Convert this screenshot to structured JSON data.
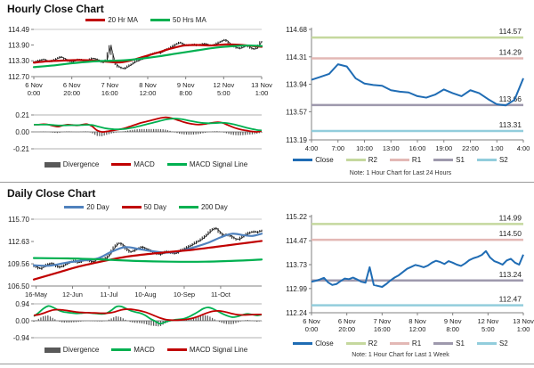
{
  "panels": {
    "hourly": {
      "title": "Hourly Close Chart"
    },
    "daily": {
      "title": "Daily Close Chart"
    },
    "hourly_pivot": {
      "note": "Note: 1 Hour Chart for Last 24 Hours"
    },
    "weekly_pivot": {
      "note": "Note: 1 Hour Chart for Last 1 Week"
    }
  },
  "colors": {
    "close_blue": "#1f6cb4",
    "ma_red": "#c00000",
    "ma_green": "#00b050",
    "ma20_blue": "#4f81bd",
    "r2_olive": "#c5d89e",
    "r1_pink": "#e3b8b5",
    "s1_purple": "#9e99ad",
    "s2_cyan": "#92cddc",
    "divergence_gray": "#595959",
    "candle_black": "#1a1a1a"
  },
  "chart_data": [
    {
      "id": "hourly-price",
      "type": "candlestick",
      "ylim": [
        112.7,
        114.49
      ],
      "yticks": [
        "114.49",
        "113.90",
        "113.30",
        "112.70"
      ],
      "xticks": [
        {
          "l1": "6 Nov",
          "l2": "0:00",
          "f": 0
        },
        {
          "l1": "6 Nov",
          "l2": "20:00",
          "f": 0.1667
        },
        {
          "l1": "7 Nov",
          "l2": "16:00",
          "f": 0.3333
        },
        {
          "l1": "8 Nov",
          "l2": "12:00",
          "f": 0.5
        },
        {
          "l1": "9 Nov",
          "l2": "8:00",
          "f": 0.6667
        },
        {
          "l1": "12 Nov",
          "l2": "5:00",
          "f": 0.8333
        },
        {
          "l1": "13 Nov",
          "l2": "1:00",
          "f": 1
        }
      ],
      "close": [
        113.25,
        113.28,
        113.32,
        113.36,
        113.3,
        113.27,
        113.33,
        113.4,
        113.45,
        113.38,
        113.3,
        113.26,
        113.3,
        113.36,
        113.33,
        113.28,
        113.34,
        113.4,
        113.36,
        113.3,
        113.22,
        113.33,
        113.9,
        113.32,
        113.1,
        113.04,
        113.0,
        113.08,
        113.16,
        113.25,
        113.31,
        113.36,
        113.43,
        113.5,
        113.56,
        113.61,
        113.58,
        113.65,
        113.72,
        113.79,
        113.86,
        113.95,
        114.0,
        113.92,
        113.88,
        113.9,
        113.93,
        113.88,
        113.92,
        113.96,
        113.9,
        113.88,
        113.93,
        113.99,
        114.06,
        114.1,
        113.96,
        113.86,
        113.8,
        113.76,
        113.83,
        113.88,
        113.8,
        113.73,
        113.8,
        114.02
      ],
      "overlays": [
        {
          "name": "20 Hr MA",
          "color": "#c00000",
          "points": [
            [
              0,
              113.23
            ],
            [
              0.06,
              113.28
            ],
            [
              0.13,
              113.31
            ],
            [
              0.2,
              113.33
            ],
            [
              0.28,
              113.3
            ],
            [
              0.33,
              113.26
            ],
            [
              0.38,
              113.24
            ],
            [
              0.42,
              113.3
            ],
            [
              0.48,
              113.45
            ],
            [
              0.54,
              113.6
            ],
            [
              0.6,
              113.76
            ],
            [
              0.66,
              113.88
            ],
            [
              0.72,
              113.9
            ],
            [
              0.78,
              113.88
            ],
            [
              0.84,
              113.92
            ],
            [
              0.9,
              113.91
            ],
            [
              0.95,
              113.87
            ],
            [
              1,
              113.83
            ]
          ]
        },
        {
          "name": "50 Hrs MA",
          "color": "#00b050",
          "points": [
            [
              0,
              113.06
            ],
            [
              0.08,
              113.12
            ],
            [
              0.16,
              113.2
            ],
            [
              0.25,
              113.27
            ],
            [
              0.33,
              113.3
            ],
            [
              0.4,
              113.32
            ],
            [
              0.47,
              113.38
            ],
            [
              0.55,
              113.47
            ],
            [
              0.63,
              113.58
            ],
            [
              0.72,
              113.7
            ],
            [
              0.8,
              113.8
            ],
            [
              0.88,
              113.86
            ],
            [
              0.94,
              113.88
            ],
            [
              1,
              113.86
            ]
          ]
        }
      ],
      "legend": [
        {
          "label": "20 Hr MA",
          "color": "#c00000",
          "swatch": "line"
        },
        {
          "label": "50 Hrs MA",
          "color": "#00b050",
          "swatch": "line"
        }
      ]
    },
    {
      "id": "hourly-macd",
      "type": "macd",
      "ylim": [
        -0.21,
        0.21
      ],
      "yticks": [
        "0.21",
        "0.00",
        "-0.21"
      ],
      "macd_color": "#c00000",
      "signal_color": "#00b050",
      "macd": [
        0.09,
        0.09,
        0.095,
        0.09,
        0.075,
        0.065,
        0.08,
        0.09,
        0.085,
        0.08,
        0.09,
        0.095,
        0.07,
        0.02,
        0.0,
        0.005,
        0.015,
        0.025,
        0.035,
        0.05,
        0.07,
        0.09,
        0.11,
        0.125,
        0.14,
        0.155,
        0.17,
        0.18,
        0.175,
        0.16,
        0.14,
        0.12,
        0.105,
        0.095,
        0.09,
        0.095,
        0.105,
        0.115,
        0.12,
        0.11,
        0.085,
        0.06,
        0.04,
        0.025,
        0.015,
        0.005,
        0.0,
        0.01
      ],
      "signal": [
        0.09,
        0.09,
        0.09,
        0.09,
        0.085,
        0.08,
        0.08,
        0.082,
        0.083,
        0.083,
        0.085,
        0.087,
        0.085,
        0.07,
        0.055,
        0.042,
        0.035,
        0.032,
        0.033,
        0.038,
        0.048,
        0.06,
        0.075,
        0.09,
        0.105,
        0.12,
        0.135,
        0.15,
        0.16,
        0.165,
        0.162,
        0.152,
        0.14,
        0.128,
        0.117,
        0.11,
        0.107,
        0.108,
        0.111,
        0.113,
        0.108,
        0.097,
        0.082,
        0.066,
        0.05,
        0.036,
        0.024,
        0.018
      ],
      "legend": [
        {
          "label": "Divergence",
          "color": "#595959",
          "swatch": "bar"
        },
        {
          "label": "MACD",
          "color": "#c00000",
          "swatch": "line"
        },
        {
          "label": "MACD Signal Line",
          "color": "#00b050",
          "swatch": "line"
        }
      ]
    },
    {
      "id": "daily-price",
      "type": "candlestick",
      "ylim": [
        106.5,
        115.7
      ],
      "yticks": [
        "115.70",
        "112.63",
        "109.56",
        "106.50"
      ],
      "xticks": [
        {
          "l1": "16-May",
          "f": 0.01
        },
        {
          "l1": "12-Jun",
          "f": 0.17
        },
        {
          "l1": "11-Jul",
          "f": 0.33
        },
        {
          "l1": "10-Aug",
          "f": 0.49
        },
        {
          "l1": "10-Sep",
          "f": 0.66
        },
        {
          "l1": "11-Oct",
          "f": 0.82
        }
      ],
      "close": [
        109.4,
        109.1,
        108.85,
        109.2,
        109.5,
        109.65,
        109.35,
        109.05,
        109.25,
        109.55,
        109.8,
        110.0,
        109.7,
        109.9,
        110.1,
        110.0,
        109.8,
        110.15,
        110.3,
        110.2,
        110.5,
        111.2,
        112.0,
        112.45,
        112.2,
        111.6,
        111.2,
        111.35,
        111.6,
        111.9,
        111.7,
        111.45,
        111.25,
        111.0,
        110.85,
        111.05,
        111.3,
        111.1,
        110.95,
        111.2,
        111.5,
        111.75,
        112.0,
        112.3,
        112.6,
        112.9,
        113.3,
        113.8,
        114.3,
        114.5,
        113.9,
        113.45,
        113.6,
        113.35,
        113.05,
        112.85,
        113.25,
        113.6,
        113.85,
        114.0,
        113.9,
        114.1
      ],
      "overlays": [
        {
          "name": "20 Day",
          "color": "#4f81bd",
          "points": [
            [
              0,
              109.35
            ],
            [
              0.07,
              109.3
            ],
            [
              0.14,
              109.7
            ],
            [
              0.21,
              110.0
            ],
            [
              0.28,
              110.3
            ],
            [
              0.34,
              111.2
            ],
            [
              0.4,
              111.85
            ],
            [
              0.46,
              111.6
            ],
            [
              0.52,
              111.3
            ],
            [
              0.58,
              111.1
            ],
            [
              0.64,
              111.3
            ],
            [
              0.7,
              111.8
            ],
            [
              0.76,
              112.4
            ],
            [
              0.82,
              113.2
            ],
            [
              0.87,
              113.7
            ],
            [
              0.92,
              113.5
            ],
            [
              0.96,
              113.4
            ],
            [
              1,
              113.7
            ]
          ]
        },
        {
          "name": "50 Day",
          "color": "#c00000",
          "points": [
            [
              0,
              107.4
            ],
            [
              0.1,
              108.3
            ],
            [
              0.2,
              109.2
            ],
            [
              0.3,
              109.9
            ],
            [
              0.4,
              110.5
            ],
            [
              0.5,
              110.9
            ],
            [
              0.6,
              111.2
            ],
            [
              0.7,
              111.5
            ],
            [
              0.8,
              111.9
            ],
            [
              0.9,
              112.3
            ],
            [
              1,
              112.7
            ]
          ]
        },
        {
          "name": "200 Day",
          "color": "#00b050",
          "points": [
            [
              0,
              110.35
            ],
            [
              0.15,
              110.3
            ],
            [
              0.3,
              110.15
            ],
            [
              0.45,
              109.95
            ],
            [
              0.6,
              109.85
            ],
            [
              0.75,
              109.85
            ],
            [
              0.9,
              110.0
            ],
            [
              1,
              110.15
            ]
          ]
        }
      ],
      "legend": [
        {
          "label": "20 Day",
          "color": "#4f81bd",
          "swatch": "line"
        },
        {
          "label": "50 Day",
          "color": "#c00000",
          "swatch": "line"
        },
        {
          "label": "200 Day",
          "color": "#00b050",
          "swatch": "line"
        }
      ]
    },
    {
      "id": "daily-macd",
      "type": "macd",
      "ylim": [
        -0.94,
        0.94
      ],
      "yticks": [
        "0.94",
        "0.00",
        "-0.94"
      ],
      "macd_color": "#00b050",
      "signal_color": "#c00000",
      "macd": [
        0.25,
        0.45,
        0.68,
        0.82,
        0.74,
        0.6,
        0.5,
        0.46,
        0.43,
        0.41,
        0.43,
        0.45,
        0.42,
        0.4,
        0.38,
        0.42,
        0.58,
        0.78,
        0.8,
        0.68,
        0.56,
        0.48,
        0.42,
        0.3,
        0.12,
        -0.02,
        -0.16,
        -0.08,
        0.0,
        0.05,
        0.08,
        0.12,
        0.22,
        0.36,
        0.52,
        0.68,
        0.74,
        0.66,
        0.52,
        0.38,
        0.27,
        0.2,
        0.24,
        0.32,
        0.38,
        0.35,
        0.3,
        0.34
      ],
      "signal": [
        0.3,
        0.34,
        0.42,
        0.52,
        0.6,
        0.62,
        0.6,
        0.56,
        0.52,
        0.48,
        0.46,
        0.45,
        0.44,
        0.43,
        0.42,
        0.42,
        0.45,
        0.52,
        0.6,
        0.64,
        0.64,
        0.6,
        0.55,
        0.48,
        0.38,
        0.27,
        0.16,
        0.08,
        0.04,
        0.03,
        0.04,
        0.06,
        0.1,
        0.16,
        0.25,
        0.36,
        0.46,
        0.53,
        0.55,
        0.52,
        0.46,
        0.39,
        0.34,
        0.32,
        0.33,
        0.34,
        0.35,
        0.35
      ],
      "legend": [
        {
          "label": "Divergence",
          "color": "#595959",
          "swatch": "bar"
        },
        {
          "label": "MACD",
          "color": "#00b050",
          "swatch": "line"
        },
        {
          "label": "MACD Signal Line",
          "color": "#c00000",
          "swatch": "line"
        }
      ]
    },
    {
      "id": "hourly-pivot",
      "type": "line",
      "ylim": [
        113.19,
        114.68
      ],
      "yticks": [
        "114.68",
        "114.31",
        "113.94",
        "113.57",
        "113.19"
      ],
      "xticks": [
        {
          "l1": "4:00",
          "f": 0
        },
        {
          "l1": "7:00",
          "f": 0.125
        },
        {
          "l1": "10:00",
          "f": 0.25
        },
        {
          "l1": "13:00",
          "f": 0.375
        },
        {
          "l1": "16:00",
          "f": 0.5
        },
        {
          "l1": "19:00",
          "f": 0.625
        },
        {
          "l1": "22:00",
          "f": 0.75
        },
        {
          "l1": "1:00",
          "f": 0.875
        },
        {
          "l1": "4:00",
          "f": 1
        }
      ],
      "close": [
        114.0,
        114.04,
        114.08,
        114.21,
        114.18,
        114.02,
        113.95,
        113.93,
        113.92,
        113.86,
        113.84,
        113.83,
        113.78,
        113.76,
        113.8,
        113.87,
        113.82,
        113.78,
        113.86,
        113.82,
        113.74,
        113.67,
        113.655,
        113.73,
        114.02
      ],
      "levels": [
        {
          "name": "R2",
          "label": "114.57",
          "color": "#c5d89e"
        },
        {
          "name": "R1",
          "label": "114.29",
          "color": "#e3b8b5"
        },
        {
          "name": "S1",
          "label": "113.66",
          "color": "#9e99ad"
        },
        {
          "name": "S2",
          "label": "113.31",
          "color": "#92cddc"
        }
      ],
      "legend": [
        {
          "label": "Close",
          "color": "#1f6cb4",
          "swatch": "line"
        },
        {
          "label": "R2",
          "color": "#c5d89e",
          "swatch": "line"
        },
        {
          "label": "R1",
          "color": "#e3b8b5",
          "swatch": "line"
        },
        {
          "label": "S1",
          "color": "#9e99ad",
          "swatch": "line"
        },
        {
          "label": "S2",
          "color": "#92cddc",
          "swatch": "line"
        }
      ]
    },
    {
      "id": "weekly-pivot",
      "type": "line",
      "ylim": [
        112.24,
        115.22
      ],
      "yticks": [
        "115.22",
        "114.47",
        "113.73",
        "112.99",
        "112.24"
      ],
      "xticks": [
        {
          "l1": "6 Nov",
          "l2": "0:00",
          "f": 0
        },
        {
          "l1": "6 Nov",
          "l2": "20:00",
          "f": 0.1667
        },
        {
          "l1": "7 Nov",
          "l2": "16:00",
          "f": 0.3333
        },
        {
          "l1": "8 Nov",
          "l2": "12:00",
          "f": 0.5
        },
        {
          "l1": "9 Nov",
          "l2": "8:00",
          "f": 0.6667
        },
        {
          "l1": "12 Nov",
          "l2": "5:00",
          "f": 0.8333
        },
        {
          "l1": "13 Nov",
          "l2": "1:00",
          "f": 1
        }
      ],
      "close": [
        113.2,
        113.23,
        113.27,
        113.32,
        113.18,
        113.1,
        113.13,
        113.22,
        113.3,
        113.28,
        113.33,
        113.27,
        113.2,
        113.17,
        113.65,
        113.1,
        113.07,
        113.04,
        113.13,
        113.24,
        113.33,
        113.4,
        113.5,
        113.6,
        113.66,
        113.72,
        113.69,
        113.65,
        113.7,
        113.79,
        113.85,
        113.81,
        113.75,
        113.84,
        113.79,
        113.73,
        113.69,
        113.77,
        113.87,
        113.93,
        113.97,
        114.03,
        114.15,
        113.95,
        113.84,
        113.79,
        113.73,
        113.86,
        113.91,
        113.79,
        113.73,
        114.04
      ],
      "levels": [
        {
          "name": "R2",
          "label": "114.99",
          "color": "#c5d89e"
        },
        {
          "name": "R1",
          "label": "114.50",
          "color": "#e3b8b5"
        },
        {
          "name": "S1",
          "label": "113.24",
          "color": "#9e99ad"
        },
        {
          "name": "S2",
          "label": "112.47",
          "color": "#92cddc"
        }
      ],
      "legend": [
        {
          "label": "Close",
          "color": "#1f6cb4",
          "swatch": "line"
        },
        {
          "label": "R2",
          "color": "#c5d89e",
          "swatch": "line"
        },
        {
          "label": "R1",
          "color": "#e3b8b5",
          "swatch": "line"
        },
        {
          "label": "S1",
          "color": "#9e99ad",
          "swatch": "line"
        },
        {
          "label": "S2",
          "color": "#92cddc",
          "swatch": "line"
        }
      ]
    }
  ]
}
